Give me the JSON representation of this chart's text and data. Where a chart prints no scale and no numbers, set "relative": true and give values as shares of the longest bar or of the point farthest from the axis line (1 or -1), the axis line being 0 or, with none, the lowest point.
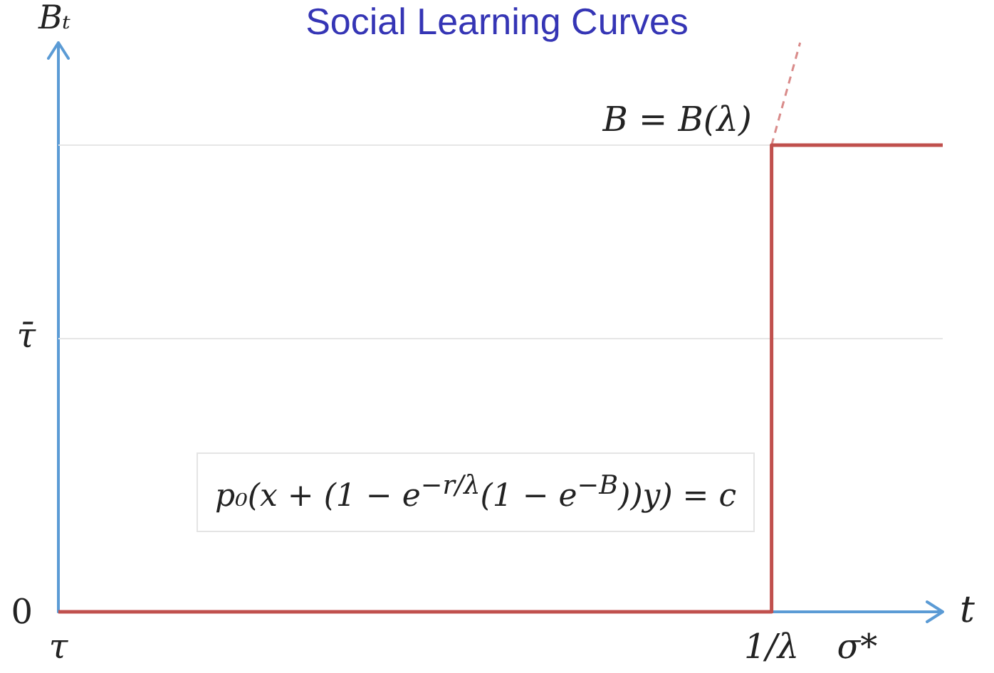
{
  "chart_data": {
    "type": "step",
    "title": "Social Learning Curves",
    "xlabel": "t",
    "ylabel": "Bₜ",
    "relative": true,
    "marker": "none",
    "categories": [
      "τ",
      null,
      null,
      null,
      null,
      null,
      null,
      null,
      null,
      null,
      null,
      null,
      null,
      null,
      null,
      null,
      null,
      null,
      null,
      null,
      null,
      null,
      null,
      null,
      null,
      "1/λ",
      null,
      null,
      "σ*",
      null,
      null,
      null
    ],
    "series": [
      {
        "color": "#c0504d",
        "values": [
          0,
          0,
          0,
          0,
          0,
          0,
          0,
          0,
          0,
          0,
          0,
          0,
          0,
          0,
          0,
          0,
          0,
          0,
          0,
          0,
          0,
          0,
          0,
          0,
          0,
          0.82,
          0.82,
          0.82,
          0.82,
          0.82,
          0.82,
          0.82
        ]
      },
      {
        "type": "line",
        "color": "#d98b8a",
        "line_style": "dashed",
        "values": [
          null,
          null,
          null,
          null,
          null,
          null,
          null,
          null,
          null,
          null,
          null,
          null,
          null,
          null,
          null,
          null,
          null,
          null,
          null,
          null,
          null,
          null,
          null,
          null,
          null,
          0.82,
          1,
          null,
          null,
          null,
          null,
          null
        ]
      }
    ],
    "ref_lines": [
      {
        "axis": "y",
        "value": 0.48,
        "label": "τ̄",
        "color": "#e6e6e6"
      },
      {
        "axis": "y",
        "value": 0.82,
        "color": "#e6e6e6"
      }
    ],
    "annotations": [
      {
        "text": "B = B(λ)",
        "x": "1/λ",
        "y": 0.82
      },
      "0",
      "p₀(x + (1 − e$^{−r/λ}$(1 − e$^{−B}$))y) = c"
    ]
  }
}
